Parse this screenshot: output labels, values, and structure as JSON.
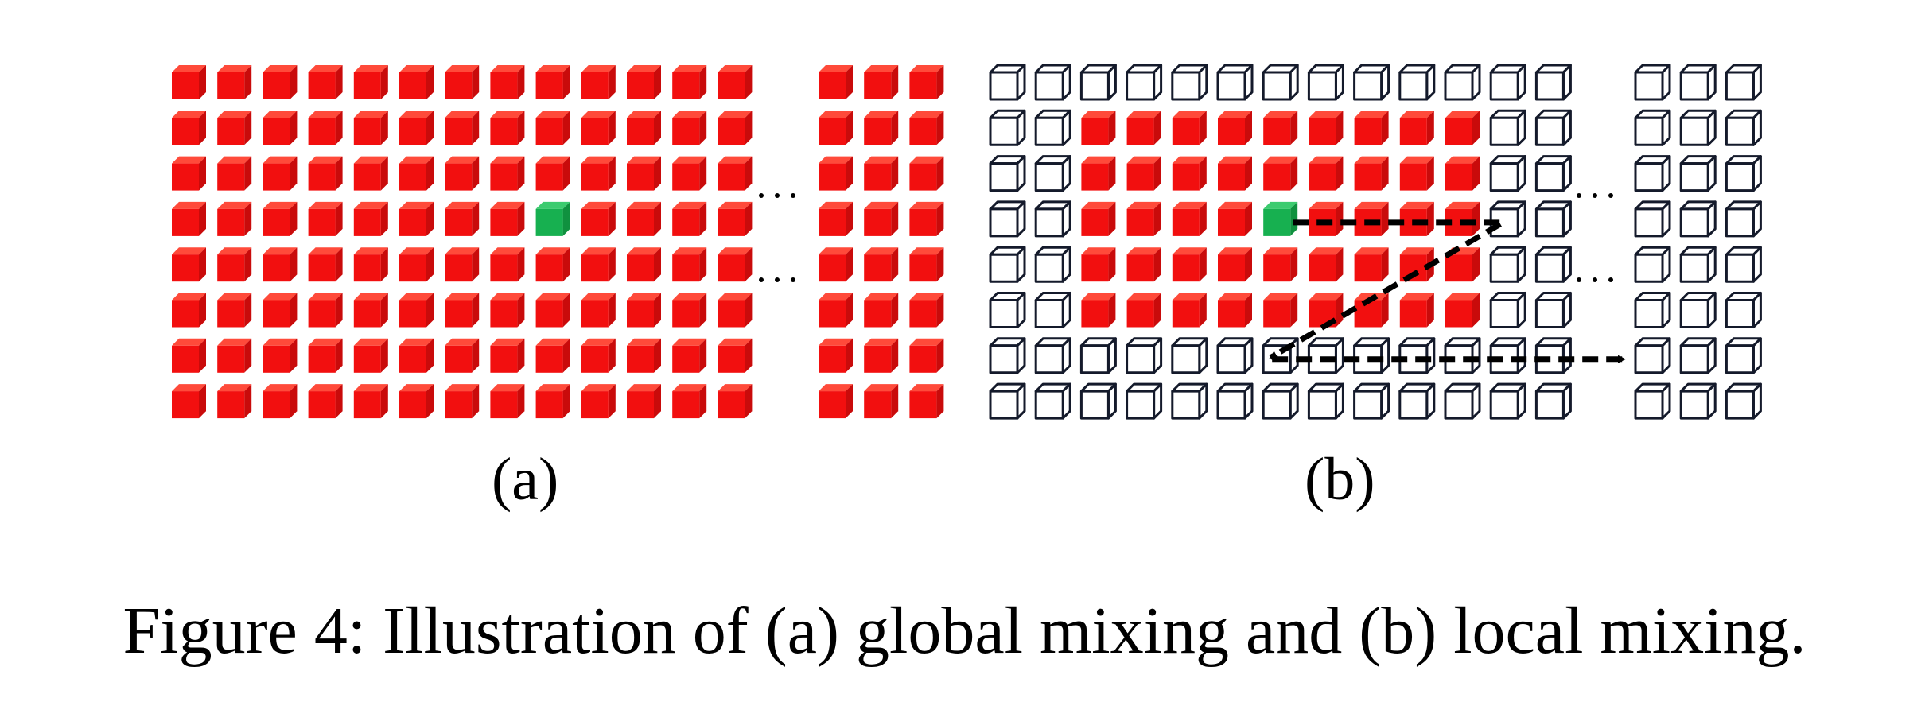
{
  "figure": {
    "panels": [
      {
        "id": "a",
        "label": "(a)",
        "description": "global mixing",
        "grid": {
          "rows": 8,
          "main_cols": 13,
          "extra_cols": 3
        },
        "default_cube": "red",
        "red_region": null,
        "center_cell": {
          "row": 4,
          "col": 9
        }
      },
      {
        "id": "b",
        "label": "(b)",
        "description": "local mixing",
        "grid": {
          "rows": 8,
          "main_cols": 13,
          "extra_cols": 3
        },
        "default_cube": "outline",
        "red_region": {
          "row_start": 2,
          "row_end": 6,
          "col_start": 3,
          "col_end": 11
        },
        "center_cell": {
          "row": 4,
          "col": 7
        }
      }
    ],
    "colors": {
      "red_face": "#f20f0f",
      "red_side": "#c90b0b",
      "red_top": "#ff4a3a",
      "green_face": "#17b050",
      "green_side": "#10913f",
      "green_top": "#3ccb6f",
      "outline_stroke": "#141a2b",
      "arrow": "#000000"
    }
  },
  "caption": "Figure 4: Illustration of (a) global mixing and (b) local mixing."
}
